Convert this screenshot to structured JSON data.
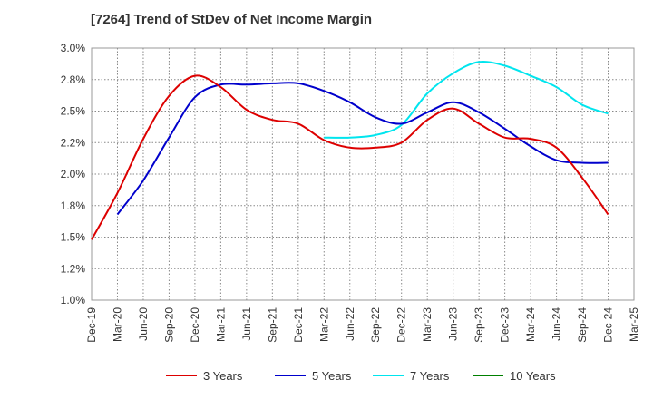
{
  "chart_data": {
    "type": "line",
    "title": "[7264]  Trend of StDev of Net Income Margin",
    "xlabel": "",
    "ylabel": "",
    "x_ticks": [
      "Dec-19",
      "Mar-20",
      "Jun-20",
      "Sep-20",
      "Dec-20",
      "Mar-21",
      "Jun-21",
      "Sep-21",
      "Dec-21",
      "Mar-22",
      "Jun-22",
      "Sep-22",
      "Dec-22",
      "Mar-23",
      "Jun-23",
      "Sep-23",
      "Dec-23",
      "Mar-24",
      "Jun-24",
      "Sep-24",
      "Dec-24",
      "Mar-25"
    ],
    "y_ticks": [
      "1.0%",
      "1.2%",
      "1.5%",
      "1.8%",
      "2.0%",
      "2.2%",
      "2.5%",
      "2.8%",
      "3.0%"
    ],
    "ylim": [
      1.0,
      3.0
    ],
    "grid": true,
    "legend_position": "bottom",
    "series": [
      {
        "name": "3 Years",
        "color": "#dd0000",
        "x": [
          "Dec-19",
          "Mar-20",
          "Jun-20",
          "Sep-20",
          "Dec-20",
          "Mar-21",
          "Jun-21",
          "Sep-21",
          "Dec-21",
          "Mar-22",
          "Jun-22",
          "Sep-22",
          "Dec-22",
          "Mar-23",
          "Jun-23",
          "Sep-23",
          "Dec-23",
          "Mar-24",
          "Jun-24",
          "Sep-24",
          "Dec-24"
        ],
        "values": [
          1.48,
          1.85,
          2.28,
          2.62,
          2.78,
          2.69,
          2.51,
          2.43,
          2.4,
          2.27,
          2.21,
          2.21,
          2.25,
          2.43,
          2.52,
          2.4,
          2.29,
          2.28,
          2.21,
          1.97,
          1.68
        ]
      },
      {
        "name": "5 Years",
        "color": "#0000cc",
        "x": [
          "Mar-20",
          "Jun-20",
          "Sep-20",
          "Dec-20",
          "Mar-21",
          "Jun-21",
          "Sep-21",
          "Dec-21",
          "Mar-22",
          "Jun-22",
          "Sep-22",
          "Dec-22",
          "Mar-23",
          "Jun-23",
          "Sep-23",
          "Dec-23",
          "Mar-24",
          "Jun-24",
          "Sep-24",
          "Dec-24"
        ],
        "values": [
          1.68,
          1.95,
          2.29,
          2.61,
          2.71,
          2.71,
          2.72,
          2.72,
          2.66,
          2.57,
          2.45,
          2.4,
          2.49,
          2.57,
          2.49,
          2.36,
          2.22,
          2.11,
          2.09,
          2.09
        ]
      },
      {
        "name": "7 Years",
        "color": "#00e5ee",
        "x": [
          "Mar-22",
          "Jun-22",
          "Sep-22",
          "Dec-22",
          "Mar-23",
          "Jun-23",
          "Sep-23",
          "Dec-23",
          "Mar-24",
          "Jun-24",
          "Sep-24",
          "Dec-24"
        ],
        "values": [
          2.29,
          2.29,
          2.31,
          2.39,
          2.64,
          2.8,
          2.89,
          2.86,
          2.78,
          2.69,
          2.55,
          2.48
        ]
      },
      {
        "name": "10 Years",
        "color": "#008000",
        "x": [],
        "values": []
      }
    ]
  }
}
